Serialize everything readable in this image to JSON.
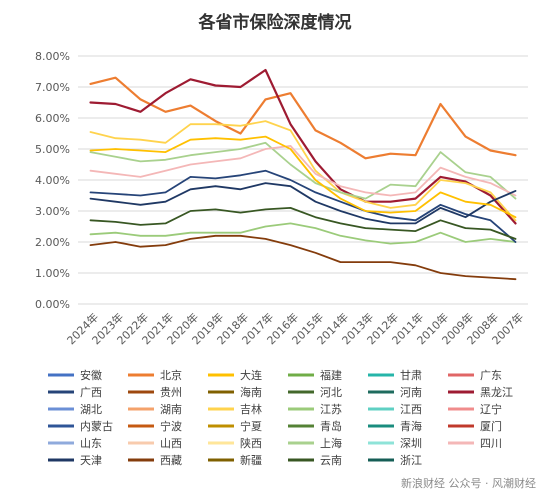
{
  "chart_data": {
    "type": "line",
    "title": "各省市保险深度情况",
    "x": [
      "2024年",
      "2023年",
      "2022年",
      "2021年",
      "2020年",
      "2019年",
      "2018年",
      "2017年",
      "2016年",
      "2015年",
      "2014年",
      "2013年",
      "2012年",
      "2011年",
      "2010年",
      "2009年",
      "2008年",
      "2007年"
    ],
    "ylim": [
      0,
      8
    ],
    "yticks": [
      "0.00%",
      "1.00%",
      "2.00%",
      "3.00%",
      "4.00%",
      "5.00%",
      "6.00%",
      "7.00%",
      "8.00%"
    ],
    "grid": true,
    "legend_position": "bottom",
    "legend": [
      {
        "name": "安徽",
        "color": "#4472C4"
      },
      {
        "name": "北京",
        "color": "#ED7D31"
      },
      {
        "name": "大连",
        "color": "#FFC000"
      },
      {
        "name": "福建",
        "color": "#70AD47"
      },
      {
        "name": "甘肃",
        "color": "#26B5A9"
      },
      {
        "name": "广东",
        "color": "#E06666"
      },
      {
        "name": "广西",
        "color": "#264478"
      },
      {
        "name": "贵州",
        "color": "#9E480E"
      },
      {
        "name": "海南",
        "color": "#806000"
      },
      {
        "name": "河北",
        "color": "#43682B"
      },
      {
        "name": "河南",
        "color": "#1E6B5E"
      },
      {
        "name": "黑龙江",
        "color": "#9E1B32"
      },
      {
        "name": "湖北",
        "color": "#6B8FD6"
      },
      {
        "name": "湖南",
        "color": "#F4A26B"
      },
      {
        "name": "吉林",
        "color": "#FFD34D"
      },
      {
        "name": "江苏",
        "color": "#9BCB7A"
      },
      {
        "name": "江西",
        "color": "#5FD0C3"
      },
      {
        "name": "辽宁",
        "color": "#F08C8C"
      },
      {
        "name": "内蒙古",
        "color": "#2F5597"
      },
      {
        "name": "宁波",
        "color": "#C55A11"
      },
      {
        "name": "宁夏",
        "color": "#BF8F00"
      },
      {
        "name": "青岛",
        "color": "#548235"
      },
      {
        "name": "青海",
        "color": "#1A8C7E"
      },
      {
        "name": "厦门",
        "color": "#C0392B"
      },
      {
        "name": "山东",
        "color": "#8FAADC"
      },
      {
        "name": "山西",
        "color": "#F8CBAD"
      },
      {
        "name": "陕西",
        "color": "#FFE699"
      },
      {
        "name": "上海",
        "color": "#A9D18E"
      },
      {
        "name": "深圳",
        "color": "#8EE3D8"
      },
      {
        "name": "四川",
        "color": "#F4B7B7"
      },
      {
        "name": "天津",
        "color": "#1F3864"
      },
      {
        "name": "西藏",
        "color": "#843C0C"
      },
      {
        "name": "新疆",
        "color": "#7F6000"
      },
      {
        "name": "云南",
        "color": "#385723"
      },
      {
        "name": "浙江",
        "color": "#155E56"
      }
    ],
    "series": [
      {
        "name": "北京",
        "color": "#ED7D31",
        "width": 2.2,
        "values": [
          7.1,
          7.3,
          6.6,
          6.2,
          6.4,
          5.9,
          5.5,
          6.6,
          6.8,
          5.6,
          5.2,
          4.7,
          4.85,
          4.8,
          6.45,
          5.4,
          4.95,
          4.8
        ]
      },
      {
        "name": "黑龙江",
        "color": "#9E1B32",
        "width": 2.2,
        "values": [
          6.5,
          6.45,
          6.2,
          6.8,
          7.25,
          7.05,
          7.0,
          7.55,
          5.8,
          4.6,
          3.7,
          3.3,
          3.3,
          3.4,
          4.1,
          3.95,
          3.5,
          2.6
        ]
      },
      {
        "name": "吉林",
        "color": "#FFD34D",
        "width": 1.8,
        "values": [
          5.55,
          5.35,
          5.3,
          5.2,
          5.8,
          5.8,
          5.75,
          5.9,
          5.6,
          4.3,
          3.6,
          3.3,
          3.1,
          3.2,
          4.0,
          3.9,
          3.6,
          2.7
        ]
      },
      {
        "name": "西藏",
        "color": "#843C0C",
        "width": 1.8,
        "values": [
          1.9,
          2.0,
          1.85,
          1.9,
          2.1,
          2.2,
          2.2,
          2.1,
          1.9,
          1.65,
          1.35,
          1.35,
          1.35,
          1.25,
          1.0,
          0.9,
          0.85,
          0.8
        ]
      },
      {
        "name": "上海",
        "color": "#A9D18E",
        "width": 1.8,
        "values": [
          4.9,
          4.75,
          4.6,
          4.65,
          4.8,
          4.9,
          5.0,
          5.2,
          4.5,
          3.9,
          3.6,
          3.4,
          3.85,
          3.8,
          4.9,
          4.25,
          4.1,
          3.4
        ]
      },
      {
        "name": "江苏",
        "color": "#9BCB7A",
        "width": 1.8,
        "values": [
          2.25,
          2.3,
          2.2,
          2.2,
          2.3,
          2.3,
          2.3,
          2.5,
          2.6,
          2.45,
          2.2,
          2.05,
          1.95,
          2.0,
          2.3,
          2.0,
          2.1,
          2.0
        ]
      },
      {
        "name": "广西",
        "color": "#264478",
        "width": 1.8,
        "values": [
          3.6,
          3.55,
          3.5,
          3.6,
          4.1,
          4.05,
          4.15,
          4.3,
          4.0,
          3.6,
          3.3,
          3.0,
          2.8,
          2.7,
          3.2,
          2.9,
          2.7,
          2.0
        ]
      },
      {
        "name": "四川",
        "color": "#F4B7B7",
        "width": 1.8,
        "values": [
          4.3,
          4.2,
          4.1,
          4.3,
          4.5,
          4.6,
          4.7,
          5.0,
          5.1,
          4.2,
          3.8,
          3.6,
          3.5,
          3.6,
          4.4,
          4.1,
          3.9,
          3.5
        ]
      },
      {
        "name": "天津",
        "color": "#1F3864",
        "width": 1.8,
        "values": [
          3.4,
          3.3,
          3.2,
          3.3,
          3.7,
          3.8,
          3.7,
          3.9,
          3.8,
          3.3,
          3.0,
          2.75,
          2.6,
          2.6,
          3.1,
          2.8,
          3.3,
          3.65
        ]
      },
      {
        "name": "大连",
        "color": "#FFC000",
        "width": 1.8,
        "values": [
          4.95,
          5.0,
          4.95,
          4.9,
          5.3,
          5.35,
          5.3,
          5.4,
          5.0,
          4.0,
          3.4,
          3.0,
          2.95,
          3.0,
          3.6,
          3.3,
          3.2,
          2.8
        ]
      },
      {
        "name": "云南",
        "color": "#385723",
        "width": 1.8,
        "values": [
          2.7,
          2.65,
          2.55,
          2.6,
          3.0,
          3.05,
          2.95,
          3.05,
          3.1,
          2.8,
          2.6,
          2.45,
          2.4,
          2.35,
          2.7,
          2.45,
          2.4,
          2.1
        ]
      }
    ]
  },
  "watermark": "新浪财经 公众号 · 风潮财经"
}
